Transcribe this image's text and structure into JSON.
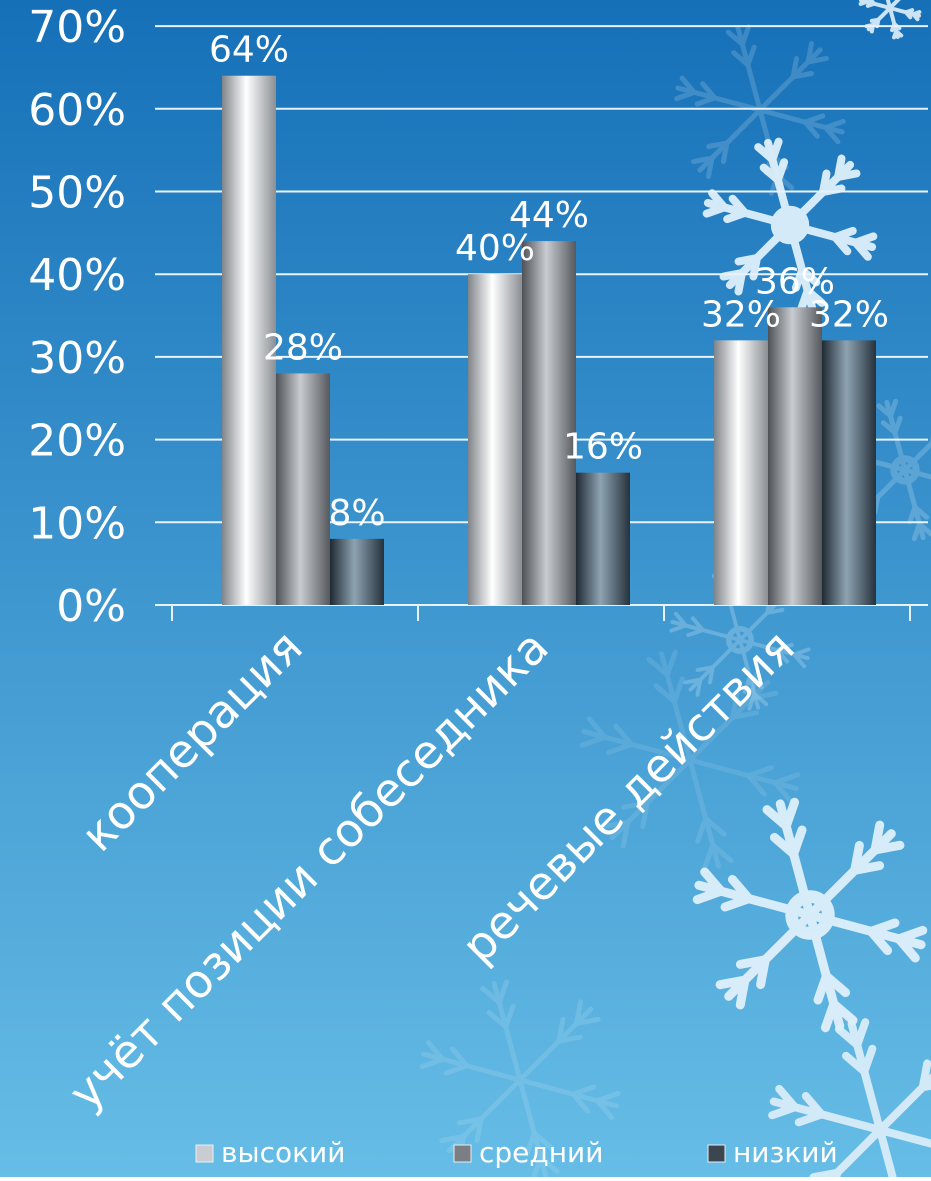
{
  "chart_data": {
    "type": "bar",
    "categories": [
      "кооперация",
      "учёт позиции собеседника",
      "речевые действия"
    ],
    "series": [
      {
        "name": "высокий",
        "values": [
          64,
          40,
          32
        ],
        "labels": [
          "64%",
          "40%",
          "32%"
        ]
      },
      {
        "name": "средний",
        "values": [
          28,
          44,
          36
        ],
        "labels": [
          "28%",
          "44%",
          "36%"
        ]
      },
      {
        "name": "низкий",
        "values": [
          8,
          16,
          32
        ],
        "labels": [
          "8%",
          "16%",
          "32%"
        ]
      }
    ],
    "ylim": [
      0,
      70
    ],
    "yticks": [
      "0%",
      "10%",
      "20%",
      "30%",
      "40%",
      "50%",
      "60%",
      "70%"
    ],
    "grid": true,
    "legend_position": "bottom",
    "colors": {
      "background_top": "#1670b8",
      "background_bottom": "#66bde6",
      "grid": "#e8f2fa",
      "text": "#ffffff",
      "series": [
        "#c9cdd1",
        "#7b7f84",
        "#3b4650"
      ]
    }
  }
}
